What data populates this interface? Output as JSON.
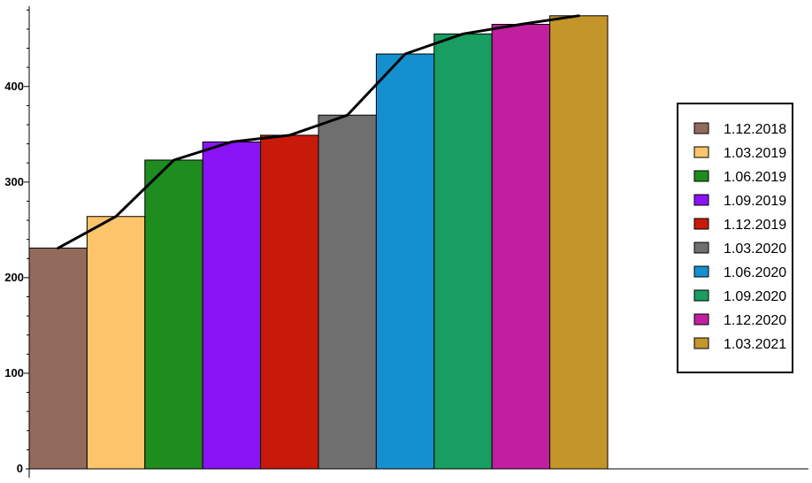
{
  "chart_data": {
    "type": "bar",
    "categories": [
      "1.12.2018",
      "1.03.2019",
      "1.06.2019",
      "1.09.2019",
      "1.12.2019",
      "1.03.2020",
      "1.06.2020",
      "1.09.2020",
      "1.12.2020",
      "1.03.2021"
    ],
    "values": [
      231,
      264,
      323,
      342,
      349,
      370,
      434,
      455,
      465,
      474
    ],
    "colors": [
      "#936b5c",
      "#fdc46b",
      "#1e8c1e",
      "#8a14f5",
      "#c81a0b",
      "#6f6f6f",
      "#1590ce",
      "#179e60",
      "#c020a0",
      "#c4962a"
    ],
    "overlay_line": {
      "values": [
        231,
        264,
        323,
        342,
        349,
        370,
        434,
        455,
        465,
        474
      ],
      "color": "#000000"
    },
    "xlim": [
      0,
      27
    ],
    "ylim": [
      0,
      484
    ],
    "y_ticks": [
      0,
      100,
      200,
      300,
      400
    ],
    "title": "",
    "xlabel": "",
    "ylabel": "",
    "grid": false,
    "legend_position": "right"
  }
}
